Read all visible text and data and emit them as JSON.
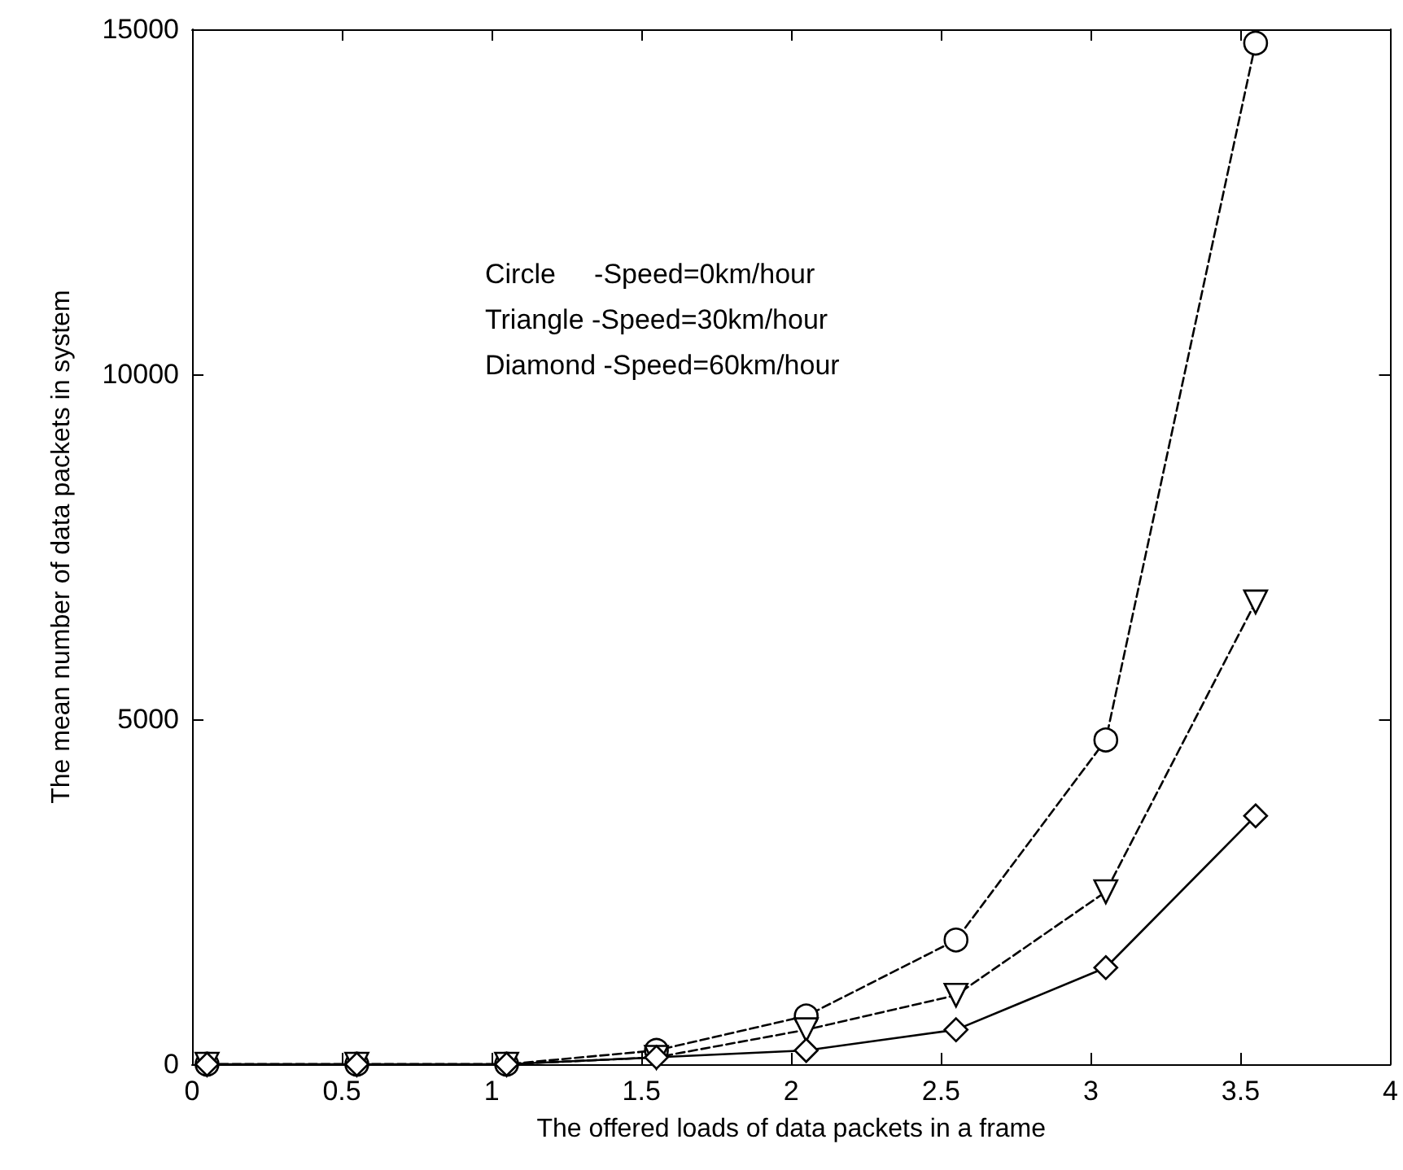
{
  "chart_data": {
    "type": "line",
    "xlabel": "The offered loads of data packets in a frame",
    "ylabel": "The mean number of data packets in system",
    "annotations": [
      "Circle     -Speed=0km/hour",
      "Triangle -Speed=30km/hour",
      "Diamond -Speed=60km/hour"
    ],
    "x": [
      0.05,
      0.55,
      1.05,
      1.55,
      2.05,
      2.55,
      3.05,
      3.55
    ],
    "series": [
      {
        "color": "#000000",
        "marker": "circle",
        "line_style": "dashed",
        "values": [
          0,
          0,
          0,
          200,
          700,
          1800,
          4700,
          14800
        ]
      },
      {
        "color": "#000000",
        "marker": "triangle",
        "line_style": "dashed",
        "values": [
          0,
          0,
          0,
          100,
          500,
          1000,
          2500,
          6700
        ]
      },
      {
        "color": "#000000",
        "marker": "diamond",
        "line_style": "solid",
        "values": [
          0,
          0,
          0,
          100,
          200,
          500,
          1400,
          3600
        ]
      }
    ],
    "xlim": [
      0,
      4
    ],
    "xticks": [
      0,
      0.5,
      1,
      1.5,
      2,
      2.5,
      3,
      3.5,
      4
    ],
    "ylim": [
      0,
      15000
    ],
    "yticks": [
      0,
      5000,
      10000,
      15000
    ],
    "grid": false
  }
}
